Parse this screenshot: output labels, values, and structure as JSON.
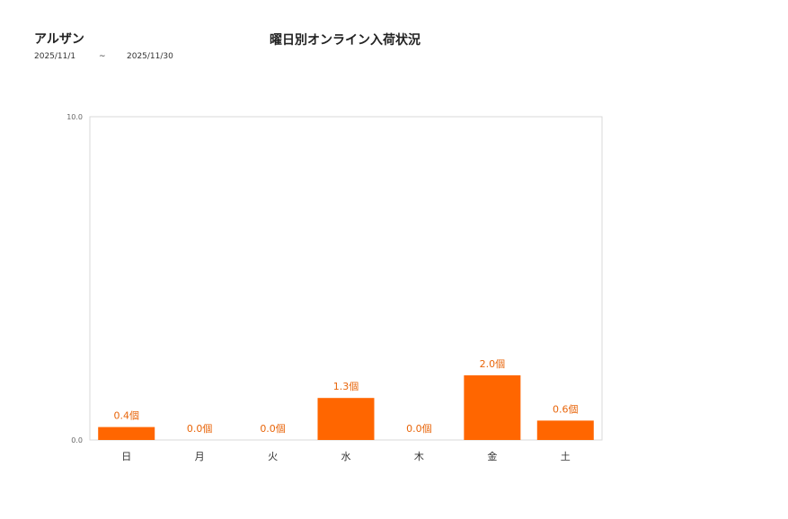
{
  "header": {
    "brand": "アルザン",
    "title": "曜日別オンライン入荷状況",
    "date_from": "2025/11/1",
    "date_sep": "~",
    "date_to": "2025/11/30"
  },
  "colors": {
    "bar": "#ff6600",
    "label": "#e8650a",
    "frame": "#d9d9d9"
  },
  "chart_data": {
    "type": "bar",
    "title": "曜日別オンライン入荷状況",
    "categories": [
      "日",
      "月",
      "火",
      "水",
      "木",
      "金",
      "土"
    ],
    "values": [
      0.4,
      0.0,
      0.0,
      1.3,
      0.0,
      2.0,
      0.6
    ],
    "data_labels": [
      "0.4個",
      "0.0個",
      "0.0個",
      "1.3個",
      "0.0個",
      "2.0個",
      "0.6個"
    ],
    "ylim": [
      0,
      10
    ],
    "yticks": [
      "0.0",
      "10.0"
    ],
    "grid": false,
    "legend": "none"
  }
}
